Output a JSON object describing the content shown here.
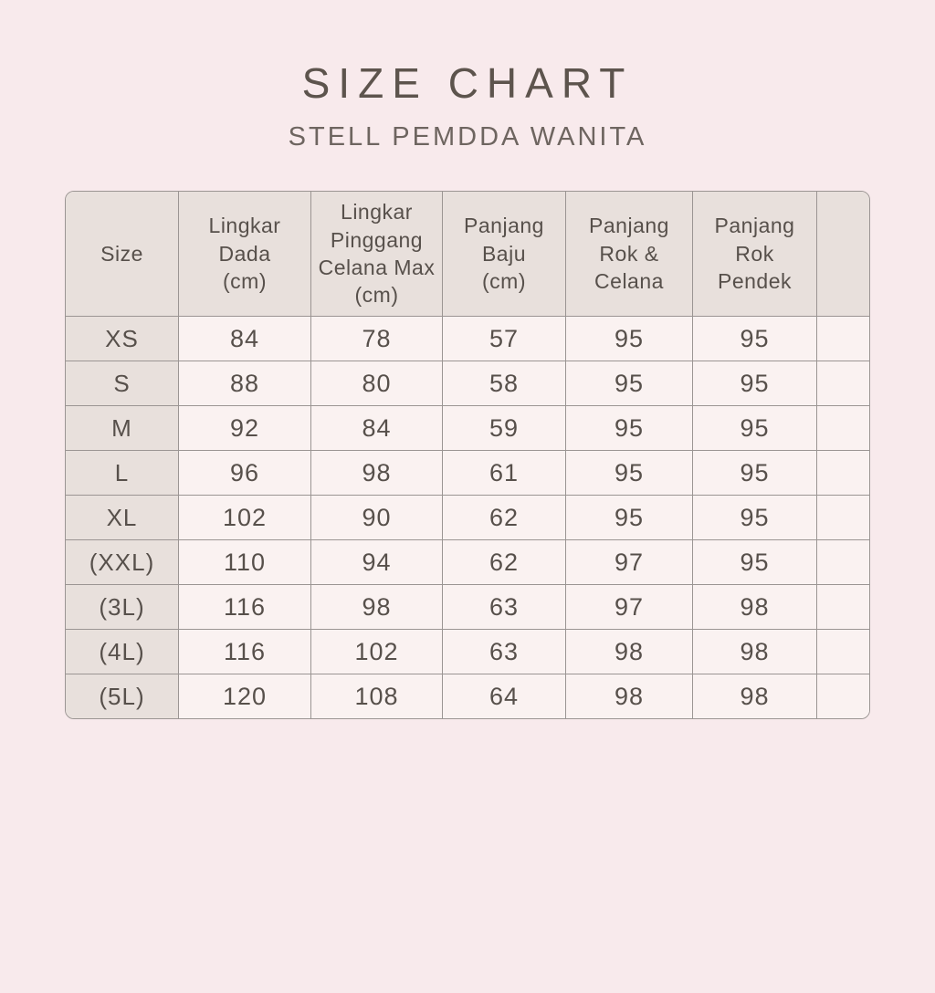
{
  "page": {
    "title": "SIZE CHART",
    "subtitle": "STELL PEMDDA WANITA"
  },
  "colors": {
    "page-background": "#f8eaec",
    "header-cell-background": "#e8e0dc",
    "data-cell-background": "#faf2f1",
    "grid-line": "#9b9593",
    "text": "#57504b",
    "title-text": "#5d544d",
    "subtitle-text": "#6e6560"
  },
  "chart_data": {
    "type": "table",
    "title": "SIZE CHART",
    "subtitle": "STELL PEMDDA WANITA",
    "columns": [
      "Size",
      "Lingkar Dada (cm)",
      "Lingkar Pinggang Celana Max (cm)",
      "Panjang Baju (cm)",
      "Panjang Rok & Celana",
      "Panjang Rok Pendek",
      ""
    ],
    "header_lines": [
      [
        "Size"
      ],
      [
        "Lingkar",
        "Dada",
        "(cm)"
      ],
      [
        "Lingkar",
        "Pinggang",
        "Celana Max",
        "(cm)"
      ],
      [
        "Panjang",
        "Baju",
        "(cm)"
      ],
      [
        "Panjang",
        "Rok &",
        "Celana"
      ],
      [
        "Panjang",
        "Rok",
        "Pendek"
      ],
      []
    ],
    "rows": [
      [
        "XS",
        "84",
        "78",
        "57",
        "95",
        "95",
        ""
      ],
      [
        "S",
        "88",
        "80",
        "58",
        "95",
        "95",
        ""
      ],
      [
        "M",
        "92",
        "84",
        "59",
        "95",
        "95",
        ""
      ],
      [
        "L",
        "96",
        "98",
        "61",
        "95",
        "95",
        ""
      ],
      [
        "XL",
        "102",
        "90",
        "62",
        "95",
        "95",
        ""
      ],
      [
        "(XXL)",
        "110",
        "94",
        "62",
        "97",
        "95",
        ""
      ],
      [
        "(3L)",
        "116",
        "98",
        "63",
        "97",
        "98",
        ""
      ],
      [
        "(4L)",
        "116",
        "102",
        "63",
        "98",
        "98",
        ""
      ],
      [
        "(5L)",
        "120",
        "108",
        "64",
        "98",
        "98",
        ""
      ]
    ]
  }
}
